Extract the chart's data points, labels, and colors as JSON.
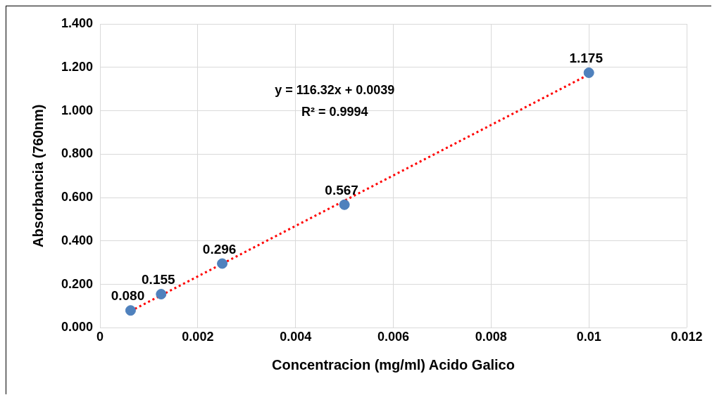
{
  "chart_data": {
    "type": "scatter",
    "xlabel": "Concentracion (mg/ml) Acido Galico",
    "ylabel": "Absorbancia (760nm)",
    "x": [
      0.000625,
      0.00125,
      0.0025,
      0.005,
      0.01
    ],
    "series": [
      {
        "type": "scatter",
        "color": "#4f81bd",
        "values": [
          0.08,
          0.155,
          0.296,
          0.567,
          1.175
        ],
        "value_labels": [
          "0.080",
          "0.155",
          "0.296",
          "0.567",
          "1.175"
        ],
        "marker": "circle"
      },
      {
        "type": "line",
        "color": "#ff0000",
        "x": [
          0.000625,
          0.01
        ],
        "values": [
          0.077,
          1.167
        ],
        "line_style": "dotted",
        "marker": "none"
      }
    ],
    "xlim": [
      0,
      0.012
    ],
    "xticks": [
      0,
      0.002,
      0.004,
      0.006,
      0.008,
      0.01,
      0.012
    ],
    "ylim": [
      0,
      1.4
    ],
    "yticks": [
      {
        "value": 0,
        "label": "0.000"
      },
      {
        "value": 0.2,
        "label": "0.200"
      },
      {
        "value": 0.4,
        "label": "0.400"
      },
      {
        "value": 0.6,
        "label": "0.600"
      },
      {
        "value": 0.8,
        "label": "0.800"
      },
      {
        "value": 1.0,
        "label": "1.000"
      },
      {
        "value": 1.2,
        "label": "1.200"
      },
      {
        "value": 1.4,
        "label": "1.400"
      }
    ],
    "grid": true,
    "legend": false,
    "annotations": [
      "y = 116.32x + 0.0039",
      "R² = 0.9994"
    ]
  }
}
